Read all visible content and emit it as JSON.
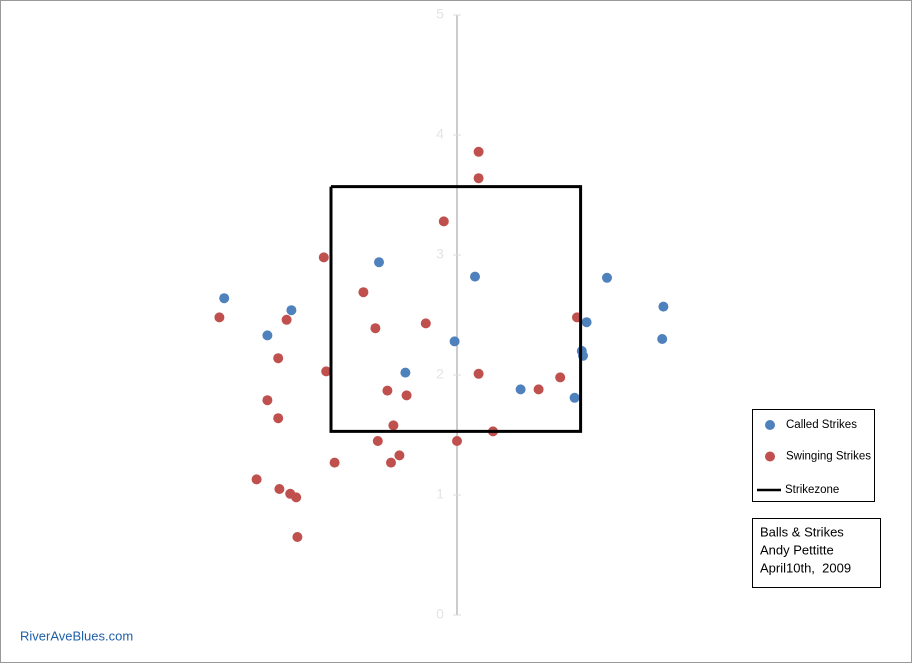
{
  "chart_data": {
    "type": "scatter",
    "xlim": [
      -3.5,
      3.5
    ],
    "ylim": [
      0,
      5
    ],
    "yticks": [
      0,
      1,
      2,
      3,
      4,
      5
    ],
    "series": [
      {
        "name": "Called Strikes",
        "color": "#4f81bd",
        "x": [
          -1.94,
          -1.38,
          -1.58,
          -0.65,
          0.15,
          -0.02,
          -0.43,
          0.53,
          0.98,
          1.04,
          1.05,
          1.08,
          1.25,
          1.72,
          1.71
        ],
        "values": [
          2.64,
          2.54,
          2.33,
          2.94,
          2.82,
          2.28,
          2.02,
          1.88,
          1.81,
          2.2,
          2.16,
          2.44,
          2.81,
          2.57,
          2.3
        ]
      },
      {
        "name": "Swinging Strikes",
        "color": "#c0504d",
        "x": [
          0.18,
          0.18,
          -0.11,
          -1.11,
          -0.78,
          -1.98,
          -1.42,
          -0.68,
          -0.26,
          -1.49,
          -1.09,
          0.18,
          -0.58,
          -0.42,
          -1.58,
          -1.49,
          1.0,
          0.86,
          0.68,
          -0.53,
          0.3,
          -0.66,
          0,
          -0.48,
          -0.55,
          -1.02,
          -1.67,
          -1.48,
          -1.39,
          -1.34,
          -1.33
        ],
        "values": [
          3.86,
          3.64,
          3.28,
          2.98,
          2.69,
          2.48,
          2.46,
          2.39,
          2.43,
          2.14,
          2.03,
          2.01,
          1.87,
          1.83,
          1.79,
          1.64,
          2.48,
          1.98,
          1.88,
          1.58,
          1.53,
          1.45,
          1.45,
          1.33,
          1.27,
          1.27,
          1.13,
          1.05,
          1.01,
          0.98,
          0.65
        ]
      },
      {
        "name": "Strikezone",
        "color": "#000000",
        "line": true,
        "x": [
          -1.05,
          1.03,
          1.03,
          -1.05,
          -1.05
        ],
        "values": [
          3.57,
          3.57,
          1.53,
          1.53,
          3.57
        ]
      }
    ],
    "annotation": [
      "Balls & Strikes",
      "Andy Pettitte",
      "April10th,  2009"
    ],
    "source": "RiverAveBlues.com"
  }
}
